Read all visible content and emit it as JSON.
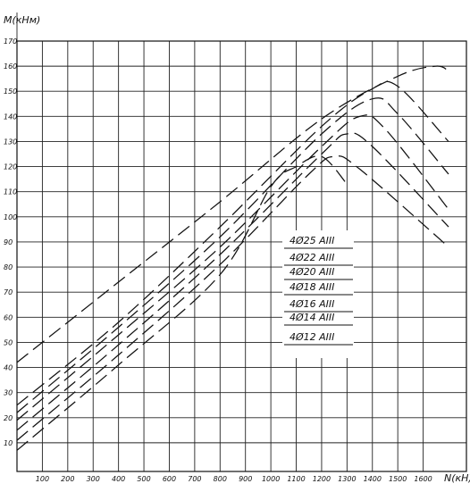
{
  "chart_data": {
    "type": "line",
    "title": "",
    "xlabel": "N(кН)",
    "ylabel": "M(кНм)",
    "xlim": [
      0,
      1700
    ],
    "ylim": [
      0,
      170
    ],
    "x_ticks": [
      100,
      200,
      300,
      400,
      500,
      600,
      700,
      800,
      900,
      1000,
      1100,
      1200,
      1300,
      1400,
      1500,
      1600
    ],
    "x_tick_labels": [
      "100",
      "200",
      "300",
      "400",
      "500",
      "600",
      "700",
      "800",
      "900",
      "1000",
      "1100",
      "1200",
      "1300",
      "1400",
      "1500",
      "1600"
    ],
    "y_ticks": [
      10,
      20,
      30,
      40,
      50,
      60,
      70,
      80,
      90,
      100,
      110,
      120,
      130,
      140,
      150,
      160,
      170
    ],
    "grid": true,
    "legend_placement": "center-right",
    "series": [
      {
        "name": "4Ø25 AIII",
        "x": [
          0,
          400,
          800,
          1200,
          1500,
          1650,
          1700
        ],
        "y": [
          42,
          74,
          106,
          139,
          156,
          160,
          158
        ]
      },
      {
        "name": "4Ø22 AIII",
        "x": [
          0,
          400,
          800,
          1200,
          1400,
          1500,
          1700
        ],
        "y": [
          25,
          58,
          96,
          136,
          151,
          152,
          130
        ]
      },
      {
        "name": "4Ø20 AIII",
        "x": [
          0,
          400,
          800,
          1200,
          1400,
          1500,
          1700
        ],
        "y": [
          22,
          56,
          92,
          133,
          147,
          141,
          117
        ]
      },
      {
        "name": "4Ø18 AIII",
        "x": [
          0,
          400,
          800,
          1200,
          1350,
          1450,
          1700
        ],
        "y": [
          19,
          53,
          88,
          128,
          140,
          135,
          103
        ]
      },
      {
        "name": "4Ø16 AIII",
        "x": [
          0,
          400,
          800,
          1200,
          1300,
          1400,
          1700
        ],
        "y": [
          15,
          49,
          85,
          125,
          133,
          128,
          96
        ]
      },
      {
        "name": "4Ø14 AIII",
        "x": [
          0,
          400,
          800,
          1150,
          1250,
          1350,
          1700
        ],
        "y": [
          11,
          45,
          81,
          117,
          124,
          119,
          88
        ]
      },
      {
        "name": "4Ø12 AIII",
        "x": [
          0,
          400,
          800,
          1000,
          1100,
          1200,
          1300
        ],
        "y": [
          7,
          41,
          77,
          112,
          120,
          124,
          113
        ]
      }
    ]
  }
}
